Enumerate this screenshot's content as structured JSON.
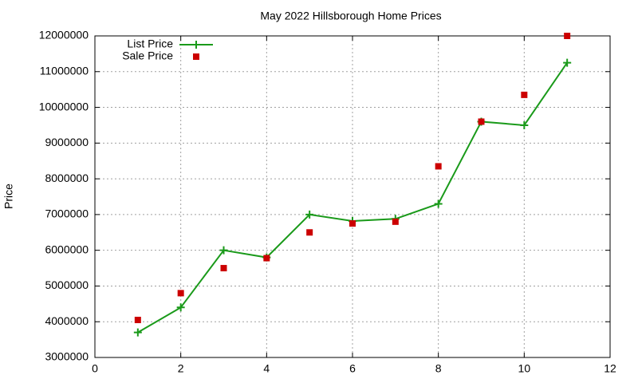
{
  "chart_data": {
    "type": "line",
    "title": "May 2022 Hillsborough Home Prices",
    "y_label": "Price",
    "x": [
      1,
      2,
      3,
      4,
      5,
      6,
      7,
      8,
      9,
      10,
      11
    ],
    "series": [
      {
        "name": "List Price",
        "color": "#1a9a1a",
        "mode": "lines+points",
        "values": [
          3700000,
          4400000,
          6000000,
          5800000,
          7000000,
          6820000,
          6880000,
          7300000,
          9600000,
          9500000,
          11250000
        ]
      },
      {
        "name": "Sale Price",
        "color": "#cc0000",
        "mode": "points",
        "values": [
          4050000,
          4800000,
          5500000,
          5780000,
          6500000,
          6750000,
          6800000,
          8350000,
          9600000,
          10350000,
          12000000
        ]
      }
    ],
    "xlim": [
      0,
      12
    ],
    "xticks": [
      0,
      2,
      4,
      6,
      8,
      10,
      12
    ],
    "ylim": [
      3000000,
      12000000
    ],
    "yticks": [
      3000000,
      4000000,
      5000000,
      6000000,
      7000000,
      8000000,
      9000000,
      10000000,
      11000000,
      12000000
    ],
    "grid": true,
    "legend": "top-left"
  }
}
